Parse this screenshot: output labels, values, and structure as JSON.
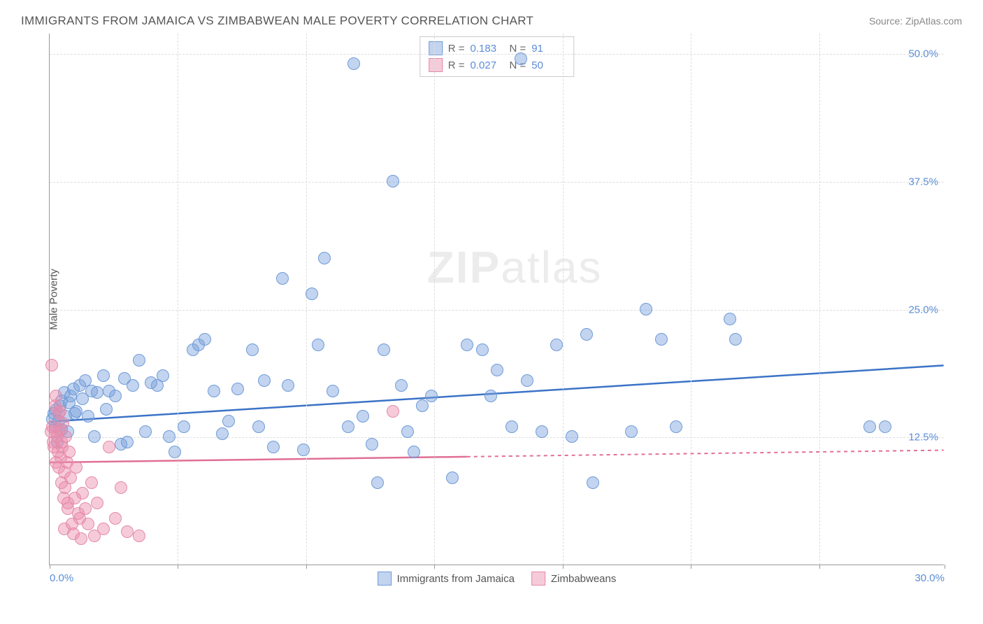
{
  "title": "IMMIGRANTS FROM JAMAICA VS ZIMBABWEAN MALE POVERTY CORRELATION CHART",
  "source_label": "Source:",
  "source_name": "ZipAtlas.com",
  "y_axis_label": "Male Poverty",
  "watermark_bold": "ZIP",
  "watermark_rest": "atlas",
  "xlim": [
    0,
    30
  ],
  "ylim": [
    0,
    52
  ],
  "x_ticks": [
    {
      "v": 0,
      "label": "0.0%",
      "show_label": true
    },
    {
      "v": 4.3,
      "label": "",
      "show_label": false
    },
    {
      "v": 8.6,
      "label": "",
      "show_label": false
    },
    {
      "v": 12.9,
      "label": "",
      "show_label": false
    },
    {
      "v": 17.2,
      "label": "",
      "show_label": false
    },
    {
      "v": 21.5,
      "label": "",
      "show_label": false
    },
    {
      "v": 25.8,
      "label": "",
      "show_label": false
    },
    {
      "v": 30,
      "label": "30.0%",
      "show_label": true
    }
  ],
  "y_ticks": [
    {
      "v": 12.5,
      "label": "12.5%"
    },
    {
      "v": 25.0,
      "label": "25.0%"
    },
    {
      "v": 37.5,
      "label": "37.5%"
    },
    {
      "v": 50.0,
      "label": "50.0%"
    }
  ],
  "grid_color": "#dddddd",
  "background_color": "#ffffff",
  "series": [
    {
      "name": "Immigrants from Jamaica",
      "fill": "rgba(120,160,220,0.45)",
      "stroke": "#6f9bd8",
      "trend_color": "#3b73c7",
      "trend_dash_after": 30,
      "r_label": "R =",
      "r_value": "0.183",
      "n_label": "N =",
      "n_value": "91",
      "trend": {
        "y_at_x0": 14.0,
        "y_at_xmax": 19.5
      },
      "points": [
        [
          0.1,
          14.2
        ],
        [
          0.15,
          14.8
        ],
        [
          0.2,
          13.5
        ],
        [
          0.2,
          15.1
        ],
        [
          0.25,
          12.0
        ],
        [
          0.3,
          14.0
        ],
        [
          0.35,
          15.5
        ],
        [
          0.4,
          13.2
        ],
        [
          0.4,
          16.0
        ],
        [
          0.5,
          16.8
        ],
        [
          0.55,
          14.5
        ],
        [
          0.6,
          13.0
        ],
        [
          0.65,
          15.8
        ],
        [
          0.7,
          16.5
        ],
        [
          0.8,
          17.2
        ],
        [
          0.85,
          14.8
        ],
        [
          0.9,
          15.0
        ],
        [
          1.0,
          17.5
        ],
        [
          1.1,
          16.2
        ],
        [
          1.2,
          18.0
        ],
        [
          1.3,
          14.5
        ],
        [
          1.4,
          17.0
        ],
        [
          1.5,
          12.5
        ],
        [
          1.6,
          16.8
        ],
        [
          1.8,
          18.5
        ],
        [
          1.9,
          15.2
        ],
        [
          2.0,
          17.0
        ],
        [
          2.2,
          16.5
        ],
        [
          2.4,
          11.8
        ],
        [
          2.5,
          18.2
        ],
        [
          2.6,
          12.0
        ],
        [
          2.8,
          17.5
        ],
        [
          3.0,
          20.0
        ],
        [
          3.2,
          13.0
        ],
        [
          3.4,
          17.8
        ],
        [
          3.6,
          17.5
        ],
        [
          3.8,
          18.5
        ],
        [
          4.0,
          12.5
        ],
        [
          4.2,
          11.0
        ],
        [
          4.5,
          13.5
        ],
        [
          4.8,
          21.0
        ],
        [
          5.0,
          21.5
        ],
        [
          5.2,
          22.0
        ],
        [
          5.5,
          17.0
        ],
        [
          5.8,
          12.8
        ],
        [
          6.0,
          14.0
        ],
        [
          6.3,
          17.2
        ],
        [
          6.8,
          21.0
        ],
        [
          7.0,
          13.5
        ],
        [
          7.2,
          18.0
        ],
        [
          7.5,
          11.5
        ],
        [
          7.8,
          28.0
        ],
        [
          8.0,
          17.5
        ],
        [
          8.5,
          11.2
        ],
        [
          8.8,
          26.5
        ],
        [
          9.0,
          21.5
        ],
        [
          9.2,
          30.0
        ],
        [
          9.5,
          17.0
        ],
        [
          10.0,
          13.5
        ],
        [
          10.2,
          49.0
        ],
        [
          10.5,
          14.5
        ],
        [
          10.8,
          11.8
        ],
        [
          11.0,
          8.0
        ],
        [
          11.2,
          21.0
        ],
        [
          11.5,
          37.5
        ],
        [
          11.8,
          17.5
        ],
        [
          12.0,
          13.0
        ],
        [
          12.2,
          11.0
        ],
        [
          12.5,
          15.5
        ],
        [
          12.8,
          16.5
        ],
        [
          13.5,
          8.5
        ],
        [
          14.0,
          21.5
        ],
        [
          14.5,
          21.0
        ],
        [
          14.8,
          16.5
        ],
        [
          15.0,
          19.0
        ],
        [
          15.5,
          13.5
        ],
        [
          15.8,
          49.5
        ],
        [
          16.0,
          18.0
        ],
        [
          16.5,
          13.0
        ],
        [
          17.0,
          21.5
        ],
        [
          17.5,
          12.5
        ],
        [
          18.0,
          22.5
        ],
        [
          18.2,
          8.0
        ],
        [
          19.5,
          13.0
        ],
        [
          20.0,
          25.0
        ],
        [
          20.5,
          22.0
        ],
        [
          21.0,
          13.5
        ],
        [
          22.8,
          24.0
        ],
        [
          23.0,
          22.0
        ],
        [
          27.5,
          13.5
        ],
        [
          28.0,
          13.5
        ]
      ]
    },
    {
      "name": "Zimbabweans",
      "fill": "rgba(235,140,170,0.45)",
      "stroke": "#e48aab",
      "trend_color": "#e16f94",
      "trend_dash_after": 14,
      "r_label": "R =",
      "r_value": "0.027",
      "n_label": "N =",
      "n_value": "50",
      "trend": {
        "y_at_x0": 10.0,
        "y_at_xmax": 11.2
      },
      "points": [
        [
          0.05,
          13.0
        ],
        [
          0.08,
          19.5
        ],
        [
          0.1,
          13.5
        ],
        [
          0.12,
          12.0
        ],
        [
          0.15,
          11.5
        ],
        [
          0.18,
          15.5
        ],
        [
          0.2,
          13.0
        ],
        [
          0.2,
          10.0
        ],
        [
          0.22,
          16.5
        ],
        [
          0.25,
          12.5
        ],
        [
          0.28,
          11.0
        ],
        [
          0.3,
          14.8
        ],
        [
          0.3,
          9.5
        ],
        [
          0.32,
          13.2
        ],
        [
          0.35,
          15.0
        ],
        [
          0.38,
          10.5
        ],
        [
          0.4,
          8.0
        ],
        [
          0.4,
          12.0
        ],
        [
          0.42,
          11.5
        ],
        [
          0.45,
          13.8
        ],
        [
          0.48,
          6.5
        ],
        [
          0.5,
          9.0
        ],
        [
          0.5,
          3.5
        ],
        [
          0.52,
          7.5
        ],
        [
          0.55,
          12.5
        ],
        [
          0.58,
          10.0
        ],
        [
          0.6,
          5.5
        ],
        [
          0.62,
          6.0
        ],
        [
          0.65,
          11.0
        ],
        [
          0.7,
          8.5
        ],
        [
          0.75,
          4.0
        ],
        [
          0.8,
          3.0
        ],
        [
          0.85,
          6.5
        ],
        [
          0.9,
          9.5
        ],
        [
          0.95,
          5.0
        ],
        [
          1.0,
          4.5
        ],
        [
          1.05,
          2.5
        ],
        [
          1.1,
          7.0
        ],
        [
          1.2,
          5.5
        ],
        [
          1.3,
          4.0
        ],
        [
          1.4,
          8.0
        ],
        [
          1.5,
          2.8
        ],
        [
          1.6,
          6.0
        ],
        [
          1.8,
          3.5
        ],
        [
          2.0,
          11.5
        ],
        [
          2.2,
          4.5
        ],
        [
          2.4,
          7.5
        ],
        [
          2.6,
          3.2
        ],
        [
          3.0,
          2.8
        ],
        [
          11.5,
          15.0
        ]
      ]
    }
  ]
}
